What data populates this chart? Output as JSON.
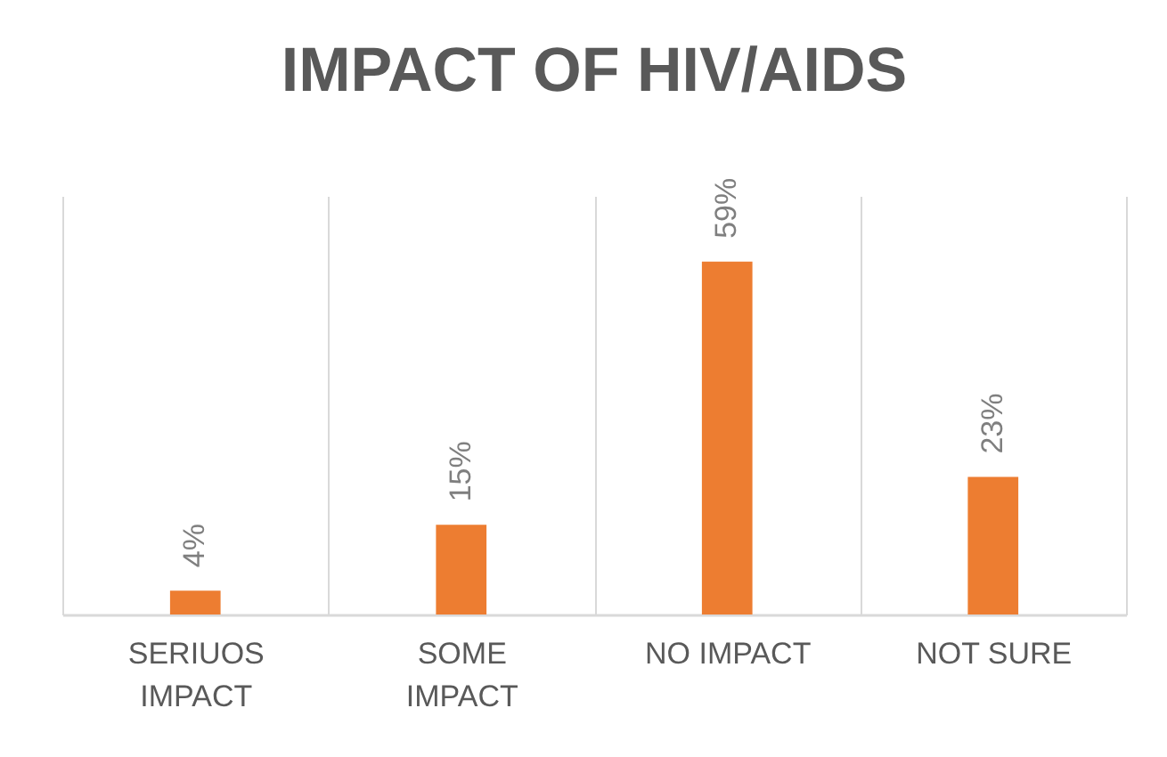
{
  "chart_data": {
    "type": "bar",
    "title": "IMPACT OF HIV/AIDS",
    "categories": [
      "SERIUOS IMPACT",
      "SOME IMPACT",
      "NO IMPACT",
      "NOT SURE"
    ],
    "values": [
      4,
      15,
      59,
      23
    ],
    "value_labels": [
      "4%",
      "15%",
      "59%",
      "23%"
    ],
    "color": "#ed7d31",
    "ylim": [
      0,
      70
    ],
    "tick_labels": "x",
    "grid": "x"
  }
}
